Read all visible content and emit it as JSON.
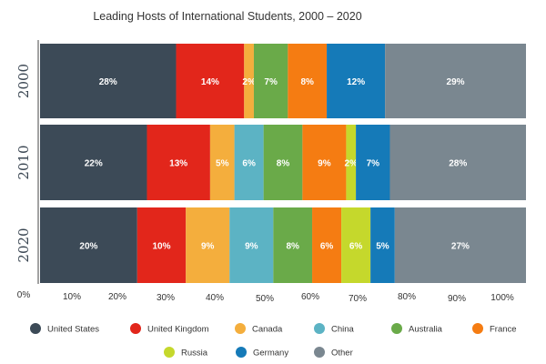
{
  "chart_data": {
    "type": "bar",
    "orientation": "horizontal",
    "stacked": true,
    "title": "Leading Hosts of International Students, 2000 – 2020",
    "categories": [
      "2000",
      "2010",
      "2020"
    ],
    "series": [
      {
        "name": "United States",
        "color": "#3c4a57",
        "values": [
          28,
          22,
          20
        ],
        "labels": [
          "28%",
          "22%",
          "20%"
        ]
      },
      {
        "name": "United Kingdom",
        "color": "#e2261b",
        "values": [
          14,
          13,
          10
        ],
        "labels": [
          "14%",
          "13%",
          "10%"
        ]
      },
      {
        "name": "Canada",
        "color": "#f4ae3d",
        "values": [
          2,
          5,
          9
        ],
        "labels": [
          "2%",
          "5%",
          "9%"
        ]
      },
      {
        "name": "China",
        "color": "#5cb3c4",
        "values": [
          0,
          6,
          9
        ],
        "labels": [
          "",
          "6%",
          "9%"
        ]
      },
      {
        "name": "Australia",
        "color": "#6aaa49",
        "values": [
          7,
          8,
          8
        ],
        "labels": [
          "7%",
          "8%",
          "8%"
        ]
      },
      {
        "name": "France",
        "color": "#f57c12",
        "values": [
          8,
          9,
          6
        ],
        "labels": [
          "8%",
          "9%",
          "6%"
        ]
      },
      {
        "name": "Russia",
        "color": "#c5d82c",
        "values": [
          0,
          2,
          6
        ],
        "labels": [
          "",
          "2%",
          "6%"
        ]
      },
      {
        "name": "Germany",
        "color": "#157ab8",
        "values": [
          12,
          7,
          5
        ],
        "labels": [
          "12%",
          "7%",
          "5%"
        ]
      },
      {
        "name": "Other",
        "color": "#7a8790",
        "values": [
          29,
          28,
          27
        ],
        "labels": [
          "29%",
          "28%",
          "27%"
        ]
      }
    ],
    "xlim": [
      0,
      100
    ],
    "xticks": [
      "0%",
      "10%",
      "20%",
      "30%",
      "40%",
      "50%",
      "60%",
      "70%",
      "80%",
      "90%",
      "100%"
    ],
    "xlabel": "",
    "ylabel": "",
    "legend_position": "bottom"
  }
}
